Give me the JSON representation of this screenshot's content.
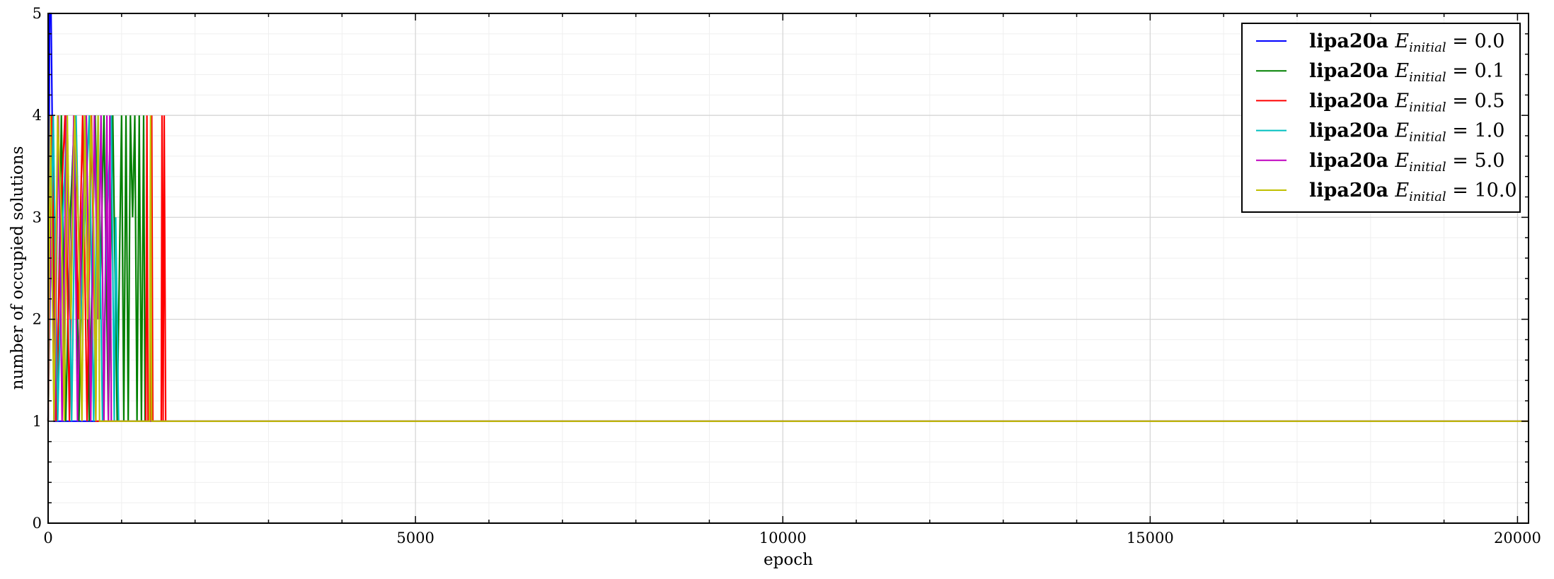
{
  "chart_data": {
    "type": "line",
    "title": "",
    "xlabel": "epoch",
    "ylabel": "number of occupied solutions",
    "xlim": [
      0,
      20150
    ],
    "ylim": [
      0,
      5
    ],
    "x_ticks": [
      0,
      5000,
      10000,
      15000,
      20000
    ],
    "x_tick_labels": [
      "0",
      "5000",
      "10000",
      "15000",
      "20000"
    ],
    "y_ticks": [
      0,
      1,
      2,
      3,
      4,
      5
    ],
    "y_tick_labels": [
      "0",
      "1",
      "2",
      "3",
      "4",
      "5"
    ],
    "grid": true,
    "legend_position": "top-right",
    "legend_prefix": "lipa20a",
    "legend_symbol": "E",
    "legend_subscript": "initial",
    "series": [
      {
        "name": "lipa20a E_initial = 0.0",
        "value_label": "= 0.0",
        "color": "#0000ff",
        "points": [
          [
            0,
            1
          ],
          [
            20,
            5
          ],
          [
            40,
            5
          ],
          [
            55,
            4
          ],
          [
            80,
            1
          ],
          [
            20150,
            1
          ]
        ]
      },
      {
        "name": "lipa20a E_initial = 0.1",
        "value_label": "= 0.1",
        "color": "#008000",
        "points": [
          [
            0,
            1
          ],
          [
            60,
            4
          ],
          [
            120,
            1
          ],
          [
            180,
            4
          ],
          [
            240,
            1
          ],
          [
            300,
            3
          ],
          [
            360,
            4
          ],
          [
            420,
            1
          ],
          [
            500,
            4
          ],
          [
            560,
            1
          ],
          [
            640,
            4
          ],
          [
            700,
            2
          ],
          [
            760,
            4
          ],
          [
            820,
            1
          ],
          [
            880,
            4
          ],
          [
            940,
            1
          ],
          [
            1000,
            4
          ],
          [
            1030,
            1
          ],
          [
            1060,
            4
          ],
          [
            1090,
            1
          ],
          [
            1120,
            4
          ],
          [
            1150,
            3
          ],
          [
            1180,
            4
          ],
          [
            1210,
            1
          ],
          [
            1240,
            4
          ],
          [
            1270,
            1
          ],
          [
            1300,
            4
          ],
          [
            1320,
            1
          ],
          [
            1600,
            1
          ],
          [
            20150,
            1
          ]
        ]
      },
      {
        "name": "lipa20a E_initial = 0.5",
        "value_label": "= 0.5",
        "color": "#ff0000",
        "points": [
          [
            0,
            1
          ],
          [
            50,
            4
          ],
          [
            110,
            1
          ],
          [
            170,
            3
          ],
          [
            230,
            4
          ],
          [
            290,
            1
          ],
          [
            350,
            4
          ],
          [
            410,
            2
          ],
          [
            470,
            4
          ],
          [
            530,
            1
          ],
          [
            590,
            4
          ],
          [
            650,
            1
          ],
          [
            700,
            1
          ],
          [
            1330,
            1
          ],
          [
            1345,
            4
          ],
          [
            1360,
            1
          ],
          [
            1400,
            1
          ],
          [
            1410,
            4
          ],
          [
            1425,
            1
          ],
          [
            1540,
            1
          ],
          [
            1550,
            4
          ],
          [
            1565,
            1
          ],
          [
            1580,
            4
          ],
          [
            1600,
            1
          ],
          [
            20150,
            1
          ]
        ]
      },
      {
        "name": "lipa20a E_initial = 1.0",
        "value_label": "= 1.0",
        "color": "#00bfbf",
        "points": [
          [
            0,
            1
          ],
          [
            70,
            4
          ],
          [
            130,
            1
          ],
          [
            200,
            3
          ],
          [
            260,
            4
          ],
          [
            320,
            1
          ],
          [
            380,
            4
          ],
          [
            440,
            2
          ],
          [
            500,
            3
          ],
          [
            560,
            4
          ],
          [
            620,
            1
          ],
          [
            680,
            4
          ],
          [
            740,
            1
          ],
          [
            800,
            3
          ],
          [
            860,
            4
          ],
          [
            900,
            1
          ],
          [
            920,
            3
          ],
          [
            960,
            1
          ],
          [
            20150,
            1
          ]
        ]
      },
      {
        "name": "lipa20a E_initial = 5.0",
        "value_label": "= 5.0",
        "color": "#bf00bf",
        "points": [
          [
            0,
            1
          ],
          [
            40,
            3
          ],
          [
            90,
            1
          ],
          [
            140,
            4
          ],
          [
            190,
            1
          ],
          [
            250,
            4
          ],
          [
            300,
            2
          ],
          [
            350,
            4
          ],
          [
            400,
            1
          ],
          [
            460,
            3
          ],
          [
            520,
            4
          ],
          [
            580,
            1
          ],
          [
            630,
            4
          ],
          [
            680,
            2
          ],
          [
            720,
            4
          ],
          [
            760,
            1
          ],
          [
            800,
            4
          ],
          [
            820,
            1
          ],
          [
            840,
            4
          ],
          [
            860,
            1
          ],
          [
            20150,
            1
          ]
        ]
      },
      {
        "name": "lipa20a E_initial = 10.0",
        "value_label": "= 10.0",
        "color": "#bfbf00",
        "points": [
          [
            0,
            1
          ],
          [
            30,
            4
          ],
          [
            80,
            1
          ],
          [
            130,
            4
          ],
          [
            180,
            3
          ],
          [
            220,
            1
          ],
          [
            260,
            4
          ],
          [
            310,
            2
          ],
          [
            360,
            4
          ],
          [
            410,
            3
          ],
          [
            460,
            1
          ],
          [
            500,
            4
          ],
          [
            540,
            2
          ],
          [
            580,
            4
          ],
          [
            620,
            3
          ],
          [
            650,
            1
          ],
          [
            680,
            4
          ],
          [
            700,
            1
          ],
          [
            1380,
            1
          ],
          [
            1395,
            4
          ],
          [
            1410,
            1
          ],
          [
            20150,
            1
          ]
        ]
      }
    ]
  }
}
